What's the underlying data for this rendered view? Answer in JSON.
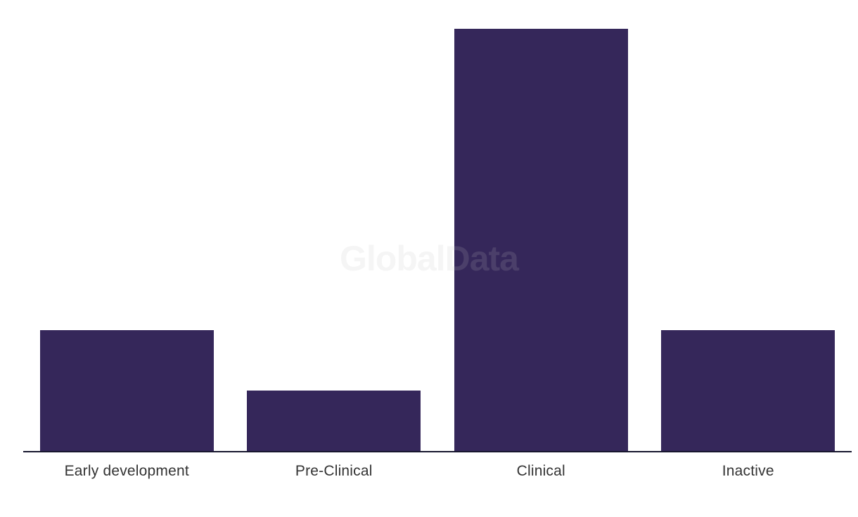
{
  "watermark": {
    "text": "GlobalData",
    "color": "rgba(190,190,195,0.16)"
  },
  "chart_data": {
    "type": "bar",
    "categories": [
      "Early development",
      "Pre-Clinical",
      "Clinical",
      "Inactive"
    ],
    "values": [
      2,
      1,
      7,
      2
    ],
    "title": "",
    "xlabel": "",
    "ylabel": "",
    "ylim": [
      0,
      7.48
    ],
    "grid": false,
    "legend": false,
    "bar_color": "#35275A",
    "axis_line_color": "#16162D",
    "label_color": "#333333"
  }
}
